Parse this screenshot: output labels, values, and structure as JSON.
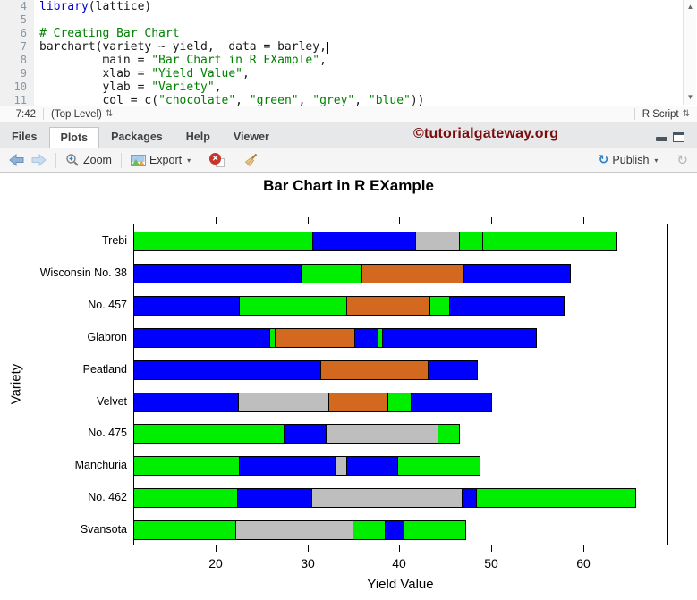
{
  "editor": {
    "lines": [
      {
        "num": "4",
        "tokens": [
          {
            "t": "library",
            "c": "kw"
          },
          {
            "t": "(lattice)",
            "c": "pl"
          }
        ]
      },
      {
        "num": "5",
        "tokens": []
      },
      {
        "num": "6",
        "tokens": [
          {
            "t": "# Creating Bar Chart",
            "c": "cm"
          }
        ]
      },
      {
        "num": "7",
        "tokens": [
          {
            "t": "barchart(variety ~ yield,  data = barley,",
            "c": "pl"
          }
        ],
        "cursor": true
      },
      {
        "num": "8",
        "tokens": [
          {
            "t": "         main = ",
            "c": "pl"
          },
          {
            "t": "\"Bar Chart in R EXample\"",
            "c": "str"
          },
          {
            "t": ",",
            "c": "pl"
          }
        ]
      },
      {
        "num": "9",
        "tokens": [
          {
            "t": "         xlab = ",
            "c": "pl"
          },
          {
            "t": "\"Yield Value\"",
            "c": "str"
          },
          {
            "t": ",",
            "c": "pl"
          }
        ]
      },
      {
        "num": "10",
        "tokens": [
          {
            "t": "         ylab = ",
            "c": "pl"
          },
          {
            "t": "\"Variety\"",
            "c": "str"
          },
          {
            "t": ",",
            "c": "pl"
          }
        ]
      },
      {
        "num": "11",
        "tokens": [
          {
            "t": "         col = c(",
            "c": "pl"
          },
          {
            "t": "\"chocolate\"",
            "c": "str"
          },
          {
            "t": ", ",
            "c": "pl"
          },
          {
            "t": "\"green\"",
            "c": "str"
          },
          {
            "t": ", ",
            "c": "pl"
          },
          {
            "t": "\"grey\"",
            "c": "str"
          },
          {
            "t": ", ",
            "c": "pl"
          },
          {
            "t": "\"blue\"",
            "c": "str"
          },
          {
            "t": "))",
            "c": "pl"
          }
        ]
      }
    ],
    "status": {
      "position": "7:42",
      "scope": "(Top Level)",
      "file_type": "R Script"
    }
  },
  "panel": {
    "tabs": [
      {
        "label": "Files",
        "active": false
      },
      {
        "label": "Plots",
        "active": true
      },
      {
        "label": "Packages",
        "active": false
      },
      {
        "label": "Help",
        "active": false
      },
      {
        "label": "Viewer",
        "active": false
      }
    ],
    "watermark": "©tutorialgateway.org",
    "toolbar": {
      "zoom_label": "Zoom",
      "export_label": "Export",
      "publish_label": "Publish"
    }
  },
  "icons": {
    "updown_glyph": "⇅",
    "caret_glyph": "▾",
    "scroll_up_glyph": "▲",
    "scroll_down_glyph": "▼",
    "publish_glyph": "↻",
    "refresh_glyph": "↻",
    "remove_x_glyph": "✕"
  },
  "chart_data": {
    "type": "bar",
    "orientation": "horizontal",
    "title": "Bar Chart in R EXample",
    "xlabel": "Yield Value",
    "ylabel": "Variety",
    "xlim": [
      11.1,
      69.1
    ],
    "xticks": [
      20,
      30,
      40,
      50,
      60
    ],
    "grid": false,
    "legend": "none",
    "colors": {
      "green": "#00EE00",
      "blue": "#0000FF",
      "grey": "#BEBEBE",
      "chocolate": "#D2691E"
    },
    "categories": [
      "Trebi",
      "Wisconsin No. 38",
      "No. 457",
      "Glabron",
      "Peatland",
      "Velvet",
      "No. 475",
      "Manchuria",
      "No. 462",
      "Svansota"
    ],
    "bars": [
      {
        "variety": "Trebi",
        "segments": [
          {
            "color": "green",
            "to": 30.6
          },
          {
            "color": "blue",
            "to": 41.8
          },
          {
            "color": "grey",
            "to": 46.6
          },
          {
            "color": "green",
            "to": 49.1
          },
          {
            "color": "green",
            "to": 63.7
          }
        ]
      },
      {
        "variety": "Wisconsin No. 38",
        "segments": [
          {
            "color": "blue",
            "to": 29.4
          },
          {
            "color": "green",
            "to": 36.0
          },
          {
            "color": "chocolate",
            "to": 47.0
          },
          {
            "color": "blue",
            "to": 58.0
          },
          {
            "color": "blue",
            "to": 58.6
          }
        ]
      },
      {
        "variety": "No. 457",
        "segments": [
          {
            "color": "blue",
            "to": 22.7
          },
          {
            "color": "green",
            "to": 34.3
          },
          {
            "color": "chocolate",
            "to": 43.4
          },
          {
            "color": "green",
            "to": 45.5
          },
          {
            "color": "blue",
            "to": 57.9
          }
        ]
      },
      {
        "variety": "Glabron",
        "segments": [
          {
            "color": "blue",
            "to": 26.0
          },
          {
            "color": "green",
            "to": 26.5
          },
          {
            "color": "chocolate",
            "to": 35.2
          },
          {
            "color": "blue",
            "to": 37.7
          },
          {
            "color": "green",
            "to": 38.2
          },
          {
            "color": "blue",
            "to": 54.9
          }
        ]
      },
      {
        "variety": "Peatland",
        "segments": [
          {
            "color": "blue",
            "to": 31.5
          },
          {
            "color": "chocolate",
            "to": 43.2
          },
          {
            "color": "blue",
            "to": 48.5
          }
        ]
      },
      {
        "variety": "Velvet",
        "segments": [
          {
            "color": "blue",
            "to": 22.6
          },
          {
            "color": "grey",
            "to": 32.4
          },
          {
            "color": "chocolate",
            "to": 38.8
          },
          {
            "color": "green",
            "to": 41.3
          },
          {
            "color": "blue",
            "to": 50.1
          }
        ]
      },
      {
        "variety": "No. 475",
        "segments": [
          {
            "color": "green",
            "to": 27.5
          },
          {
            "color": "blue",
            "to": 32.1
          },
          {
            "color": "grey",
            "to": 44.2
          },
          {
            "color": "green",
            "to": 46.6
          }
        ]
      },
      {
        "variety": "Manchuria",
        "segments": [
          {
            "color": "green",
            "to": 22.7
          },
          {
            "color": "blue",
            "to": 33.1
          },
          {
            "color": "grey",
            "to": 34.3
          },
          {
            "color": "blue",
            "to": 39.9
          },
          {
            "color": "green",
            "to": 48.8
          }
        ]
      },
      {
        "variety": "No. 462",
        "segments": [
          {
            "color": "green",
            "to": 22.5
          },
          {
            "color": "blue",
            "to": 30.5
          },
          {
            "color": "grey",
            "to": 46.9
          },
          {
            "color": "blue",
            "to": 48.4
          },
          {
            "color": "green",
            "to": 65.7
          }
        ]
      },
      {
        "variety": "Svansota",
        "segments": [
          {
            "color": "green",
            "to": 22.3
          },
          {
            "color": "grey",
            "to": 35.0
          },
          {
            "color": "green",
            "to": 38.5
          },
          {
            "color": "blue",
            "to": 40.5
          },
          {
            "color": "green",
            "to": 47.2
          }
        ]
      }
    ]
  }
}
